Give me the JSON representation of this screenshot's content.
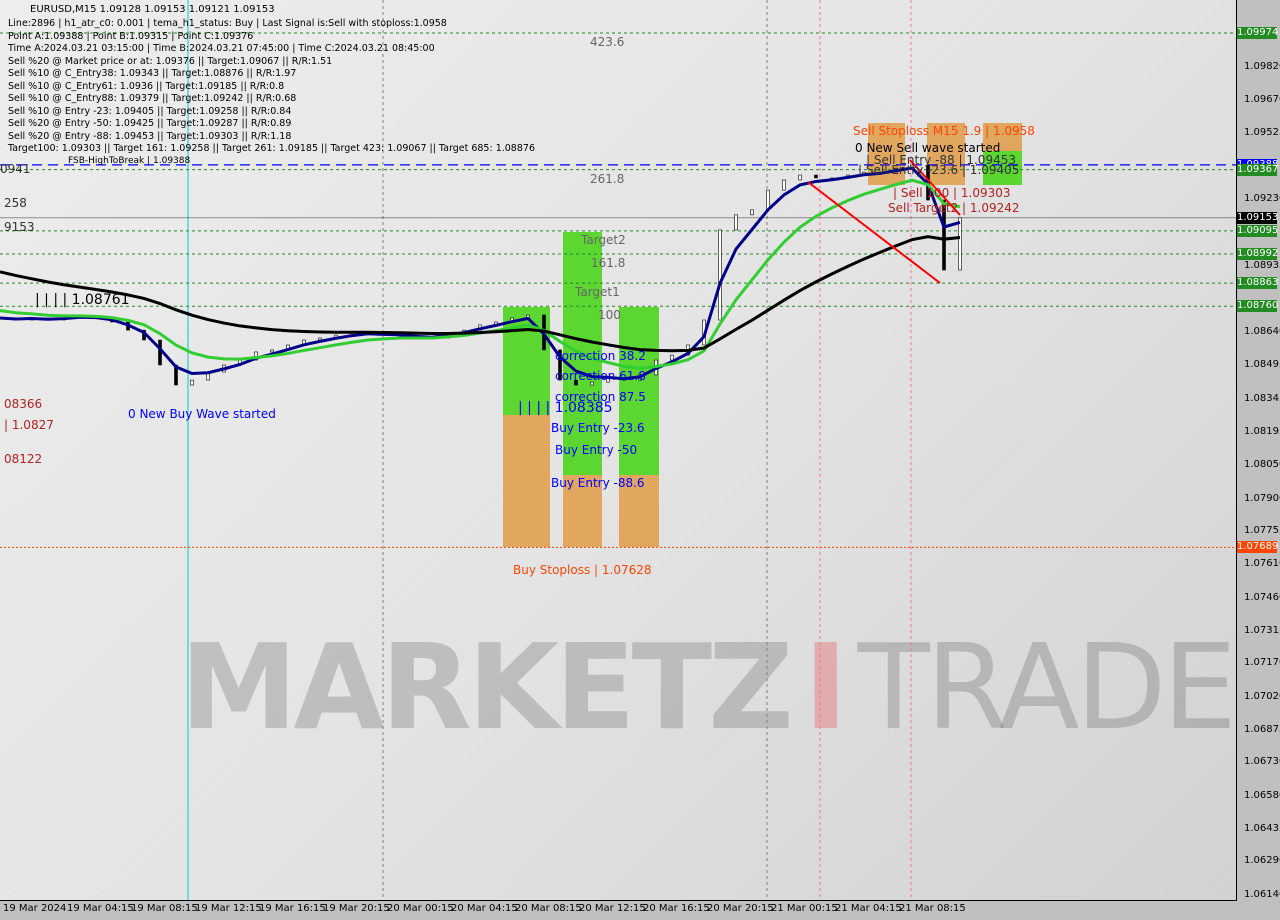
{
  "header": {
    "symbol_line": "EURUSD,M15  1.09128 1.09153 1.09121 1.09153",
    "info_lines": [
      "Line:2896 | h1_atr_c0: 0.001 | tema_h1_status: Buy | Last Signal is:Sell with stoploss:1.0958",
      "Point A:1.09388 | Point B:1.09315 | Point C:1.09376",
      "Time A:2024.03.21 03:15:00 | Time B:2024.03.21 07:45:00 | Time C:2024.03.21 08:45:00",
      "Sell %20 @ Market price or at: 1.09376 || Target:1.09067 || R/R:1.51",
      "Sell %10 @ C_Entry38: 1.09343 || Target:1.08876 || R/R:1.97",
      "Sell %10 @ C_Entry61: 1.0936 || Target:1.09185 || R/R:0.8",
      "Sell %10 @ C_Entry88: 1.09379 || Target:1.09242 || R/R:0.68",
      "Sell %10 @ Entry -23: 1.09405 || Target:1.09258 || R/R:0.84",
      "Sell %20 @ Entry -50: 1.09425 || Target:1.09287 || R/R:0.89",
      "Sell %20 @ Entry -88: 1.09453 || Target:1.09303 || R/R:1.18",
      "Target100: 1.09303 || Target 161: 1.09258 || Target 261: 1.09185 || Target 423: 1.09067 || Target 685: 1.08876"
    ],
    "fsb": "FSB-HighToBreak | 1.09388"
  },
  "watermark": {
    "text1": "MARKETZ",
    "text2": "I",
    "text3": "TRADE"
  },
  "chart_data": {
    "type": "candlestick",
    "symbol": "EURUSD",
    "timeframe": "M15",
    "ylim": [
      1.0614,
      1.09974
    ],
    "y_ticks": [
      "1.09820",
      "1.09670",
      "1.09525",
      "1.09230",
      "1.08935",
      "1.08640",
      "1.08495",
      "1.08345",
      "1.08195",
      "1.08050",
      "1.07900",
      "1.07755",
      "1.07610",
      "1.07460",
      "1.07315",
      "1.07170",
      "1.07020",
      "1.06875",
      "1.06730",
      "1.06580",
      "1.06435",
      "1.06290",
      "1.06140"
    ],
    "x_ticks": [
      "19 Mar 2024",
      "19 Mar 04:15",
      "19 Mar 08:15",
      "19 Mar 12:15",
      "19 Mar 16:15",
      "19 Mar 20:15",
      "20 Mar 00:15",
      "20 Mar 04:15",
      "20 Mar 08:15",
      "20 Mar 12:15",
      "20 Mar 16:15",
      "20 Mar 20:15",
      "21 Mar 00:15",
      "21 Mar 04:15",
      "21 Mar 08:15"
    ],
    "close_hourly": [
      1.08708,
      1.08699,
      1.08708,
      1.08699,
      1.08708,
      1.08717,
      1.08708,
      1.0869,
      1.08654,
      1.0861,
      1.08499,
      1.0841,
      1.08432,
      1.08468,
      1.08499,
      1.08521,
      1.08557,
      1.08566,
      1.08588,
      1.0861,
      1.08619,
      1.08632,
      1.08641,
      1.08646,
      1.08632,
      1.08632,
      1.08619,
      1.08619,
      1.08641,
      1.08654,
      1.08677,
      1.0869,
      1.08708,
      1.08721,
      1.08566,
      1.08432,
      1.0841,
      1.08423,
      1.08441,
      1.08432,
      1.08455,
      1.08521,
      1.08543,
      1.08588,
      1.08699,
      1.09099,
      1.09166,
      1.09188,
      1.09276,
      1.09321,
      1.09343,
      1.0933,
      1.0933,
      1.09343,
      1.09356,
      1.09356,
      1.09374,
      1.09387,
      1.09232,
      1.08921,
      1.09153
    ],
    "price_levels": [
      {
        "price": 1.09974,
        "label": "1.09974",
        "color": "#228b22",
        "style": "dashed"
      },
      {
        "price": 1.09388,
        "label": "1.09388",
        "color": "#0000ff",
        "style": "dashed"
      },
      {
        "price": 1.09367,
        "label": "1.09367",
        "color": "#228b22",
        "style": "dashed"
      },
      {
        "price": 1.09153,
        "label": "1.09153",
        "color": "#000000",
        "style": "solid"
      },
      {
        "price": 1.09095,
        "label": "1.09095",
        "color": "#228b22",
        "style": "dashed"
      },
      {
        "price": 1.08992,
        "label": "1.08992",
        "color": "#228b22",
        "style": "dashed"
      },
      {
        "price": 1.08863,
        "label": "1.08863",
        "color": "#228b22",
        "style": "dashed"
      },
      {
        "price": 1.0876,
        "label": "1.08760",
        "color": "#228b22",
        "style": "dashed"
      },
      {
        "price": 1.07689,
        "label": "1.07689",
        "color": "#ff4500",
        "style": "dotted"
      }
    ],
    "annotations": {
      "fib_4236": "423.6",
      "fib_2618": "261.8",
      "target2": "Target2",
      "fib_1618": "161.8",
      "target1": "Target1",
      "fib_100": "100",
      "corr38": "correction 38.2",
      "corr61": "correction 61.8",
      "corr87": "correction 87.5",
      "low_mark": "| | | | 1.08385",
      "high_mark": "| | | | 1.08761",
      "buy_23": "Buy Entry -23.6",
      "buy_50": "Buy Entry -50",
      "buy_88": "Buy Entry -88.6",
      "buy_stop": "Buy Stoploss | 1.07628",
      "new_buy": "0 New Buy Wave started",
      "sell_stop": "Sell Stoploss M15 1.9 | 1.0958",
      "new_sell": "0 New Sell wave started",
      "sell_entry88": "| Sell Entry -88 | 1.09453",
      "sell_entry23": "| Sell Entry -23.6 | 1.09405",
      "sell100": "| Sell 100 | 1.09303",
      "sell_target2": "Sell Target2 | 1.09242",
      "left1": "0941",
      "left2": "258",
      "left3": "9153",
      "left4": "08366",
      "left5": "| 1.0827",
      "left6": "08122"
    },
    "colors": {
      "ma_fast": "#00008b",
      "ma_mid": "#32cd32",
      "ma_slow": "#000000",
      "zone_green": "#4cd41c",
      "zone_orange": "#e0a050",
      "trend": "#ff0000"
    }
  }
}
